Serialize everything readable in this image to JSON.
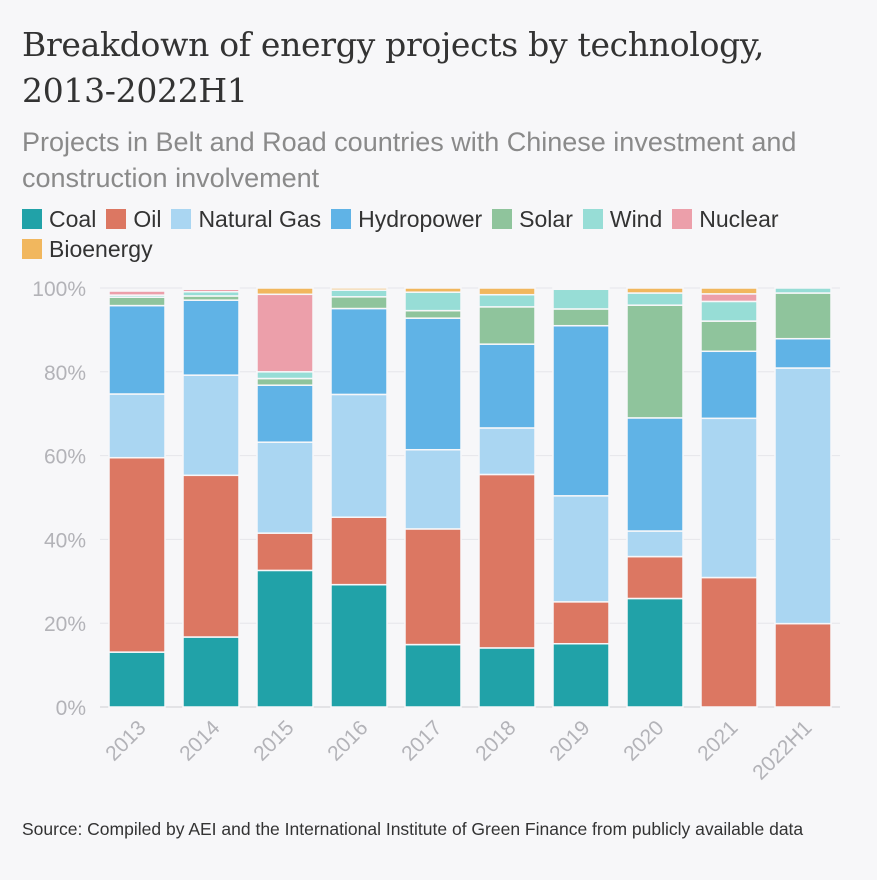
{
  "title": "Breakdown of energy projects by technology, 2013-2022H1",
  "subtitle": "Projects in Belt and Road countries with Chinese investment and construction involvement",
  "source": "Source: Compiled by AEI and the International Institute of Green Finance from publicly available data",
  "colors": {
    "Coal": "#21a2a8",
    "Oil": "#dc7762",
    "Natural Gas": "#aad6f2",
    "Hydropower": "#60b3e6",
    "Solar": "#8fc49c",
    "Wind": "#97ddd6",
    "Nuclear": "#ec9faa",
    "Bioenergy": "#f1b75e"
  },
  "chart_data": {
    "type": "bar",
    "stacked": true,
    "categories": [
      "2013",
      "2014",
      "2015",
      "2016",
      "2017",
      "2018",
      "2019",
      "2020",
      "2021",
      "2022H1"
    ],
    "y_tick_labels": [
      "0%",
      "20%",
      "40%",
      "60%",
      "80%",
      "100%"
    ],
    "ylim": [
      0,
      100
    ],
    "grid": true,
    "legend_position": "top",
    "series": [
      {
        "name": "Coal",
        "values": [
          13.1,
          16.7,
          32.6,
          29.2,
          14.9,
          14.1,
          15.1,
          25.9,
          0,
          0
        ]
      },
      {
        "name": "Oil",
        "values": [
          46.4,
          38.6,
          8.9,
          16.1,
          27.6,
          41.4,
          10.0,
          10.0,
          30.9,
          19.9
        ]
      },
      {
        "name": "Natural Gas",
        "values": [
          15.2,
          23.9,
          21.7,
          29.3,
          18.9,
          11.1,
          25.3,
          6.1,
          38.0,
          61.0
        ]
      },
      {
        "name": "Hydropower",
        "values": [
          21.1,
          17.9,
          13.6,
          20.5,
          31.4,
          20.0,
          40.6,
          27.0,
          16.0,
          7.0
        ]
      },
      {
        "name": "Solar",
        "values": [
          2.0,
          1.0,
          1.6,
          2.8,
          1.8,
          8.9,
          4.0,
          26.9,
          7.2,
          10.9
        ]
      },
      {
        "name": "Wind",
        "values": [
          0.5,
          1.0,
          1.6,
          1.6,
          4.4,
          2.9,
          4.7,
          2.9,
          4.7,
          1.2
        ]
      },
      {
        "name": "Nuclear",
        "values": [
          1.0,
          0.6,
          18.5,
          0,
          0,
          0,
          0,
          0,
          1.8,
          0
        ]
      },
      {
        "name": "Bioenergy",
        "values": [
          0.2,
          0.3,
          1.5,
          0.5,
          1.0,
          1.6,
          0.3,
          1.2,
          1.4,
          0
        ]
      }
    ]
  }
}
